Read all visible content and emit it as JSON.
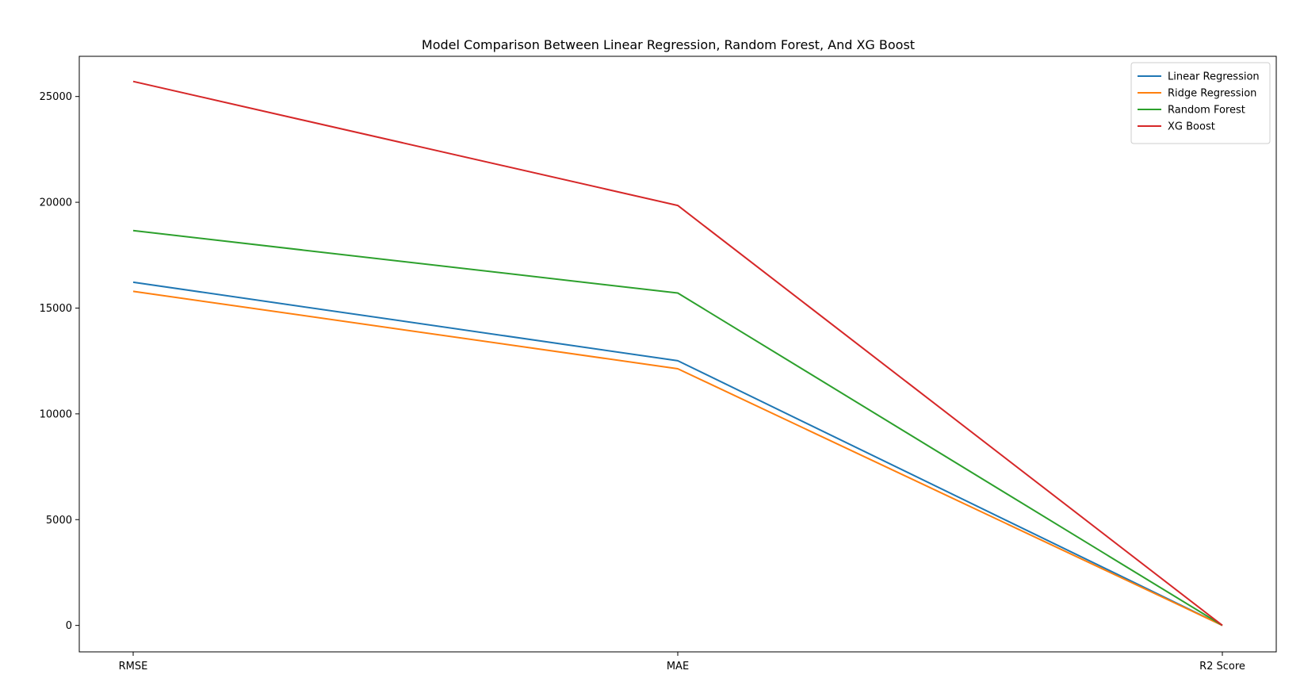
{
  "chart_data": {
    "type": "line",
    "title": "Model Comparison Between Linear Regression, Random Forest, And XG Boost",
    "xlabel": "",
    "ylabel": "",
    "categories": [
      "RMSE",
      "MAE",
      "R2 Score"
    ],
    "ylim": [
      -1250,
      26900
    ],
    "yticks": [
      0,
      5000,
      10000,
      15000,
      20000,
      25000
    ],
    "grid": false,
    "legend_position": "top-right",
    "series": [
      {
        "name": "Linear Regression",
        "color": "#1f77b4",
        "values": [
          16220,
          12510,
          0.8
        ]
      },
      {
        "name": "Ridge Regression",
        "color": "#ff7f0e",
        "values": [
          15790,
          12130,
          0.8
        ]
      },
      {
        "name": "Random Forest",
        "color": "#2ca02c",
        "values": [
          18660,
          15710,
          0.8
        ]
      },
      {
        "name": "XG Boost",
        "color": "#d62728",
        "values": [
          25710,
          19850,
          0.6
        ]
      }
    ]
  }
}
